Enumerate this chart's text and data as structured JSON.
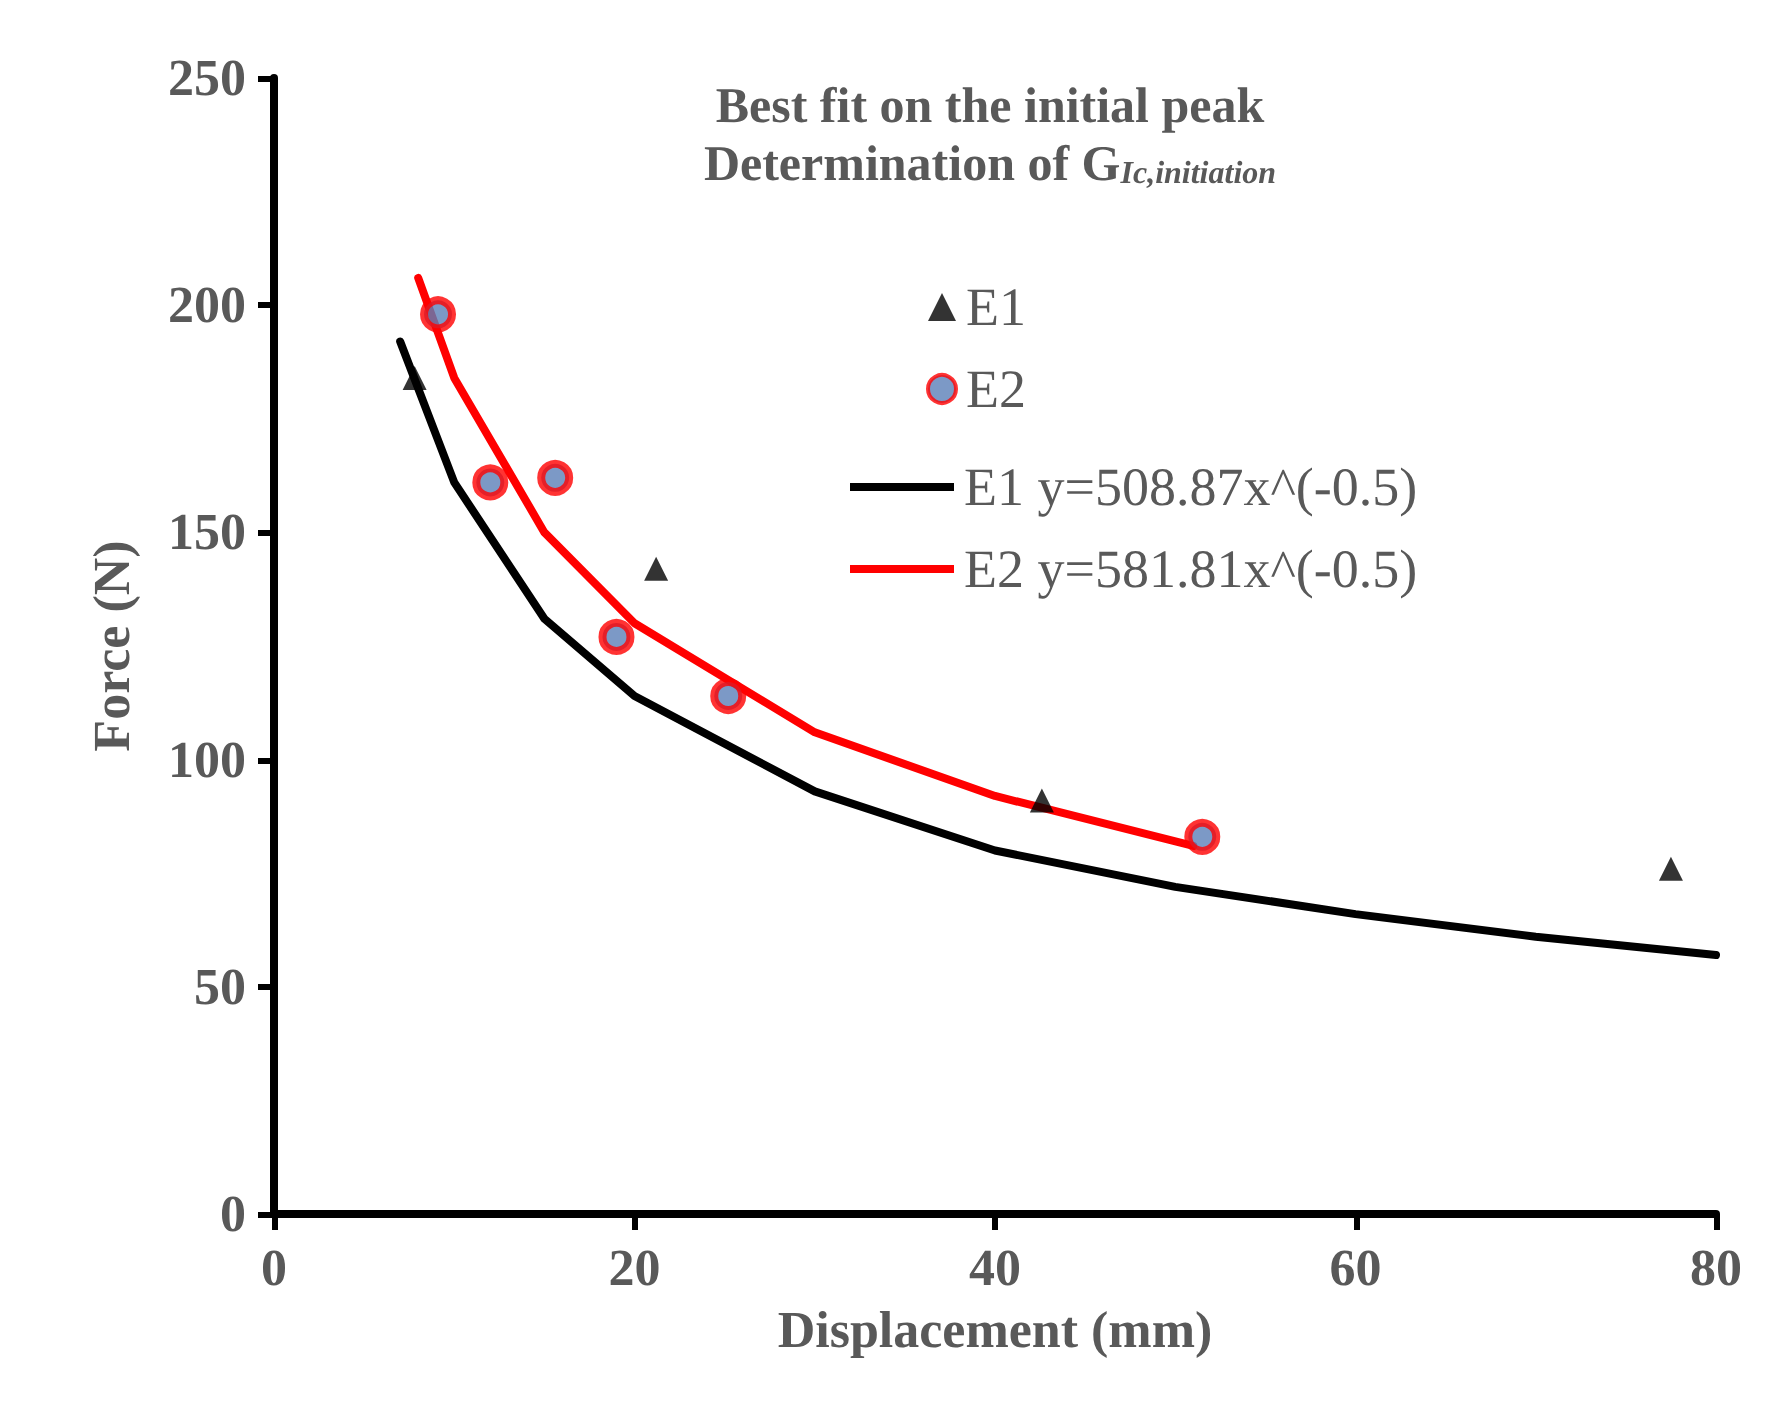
{
  "chart_data": {
    "type": "scatter",
    "title": "Best fit on the initial peak",
    "subtitle": "Determination of G$_{Ic,initiation}$",
    "xlabel": "Displacement (mm)",
    "ylabel": "Force (N)",
    "xlim": [
      0,
      80
    ],
    "xticks": [
      0,
      20,
      40,
      60,
      80
    ],
    "ylim": [
      0,
      250
    ],
    "yticks": [
      0,
      50,
      100,
      150,
      200,
      250
    ],
    "grid": false,
    "legend": "top right",
    "series": [
      {
        "name": "E1",
        "marker": "triangle",
        "color": "#000000",
        "x": [
          7.8,
          21.2,
          42.6,
          77.5
        ],
        "values": [
          184,
          142,
          91,
          76
        ]
      },
      {
        "name": "E2",
        "marker": "circle",
        "color": "#ff0000",
        "x": [
          9.1,
          12.0,
          15.6,
          19.0,
          25.2,
          51.5
        ],
        "values": [
          198,
          161,
          162,
          127,
          114,
          83
        ]
      },
      {
        "name": "E1 y=508.87x^(-0.5)",
        "type": "line",
        "marker": "none",
        "line_style": "solid",
        "color": "#000000",
        "x": [
          7,
          10,
          15,
          20,
          30,
          40,
          50,
          60,
          70,
          80
        ],
        "values": [
          192,
          161,
          131,
          114,
          93,
          80,
          72,
          66,
          61,
          57
        ]
      },
      {
        "name": "E2 y=581.81x^(-0.5)",
        "type": "line",
        "marker": "none",
        "line_style": "solid",
        "color": "#ff0000",
        "x": [
          8,
          10,
          15,
          20,
          30,
          40,
          51
        ],
        "values": [
          206,
          184,
          150,
          130,
          106,
          92,
          81
        ]
      }
    ]
  }
}
